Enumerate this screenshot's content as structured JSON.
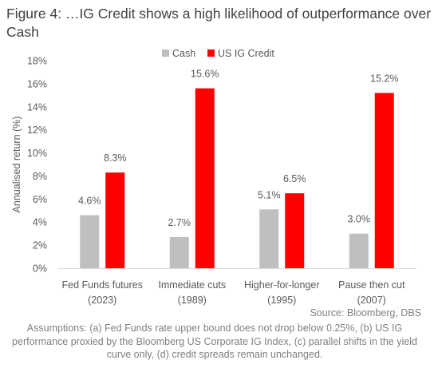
{
  "title": "Figure 4: …IG Credit shows a high likelihood of outperformance over Cash",
  "source": "Source: Bloomberg, DBS",
  "assumptions": "Assumptions: (a) Fed Funds rate upper bound does not drop below 0.25%, (b) US IG performance proxied by the Bloomberg US Corporate IG Index, (c) parallel shifts in the yield curve only, (d) credit spreads remain unchanged.",
  "chart_data": {
    "type": "bar",
    "title": "Figure 4: …IG Credit shows a high likelihood of outperformance over Cash",
    "ylabel": "Annualised return (%)",
    "xlabel": "",
    "ylim": [
      0,
      18
    ],
    "y_ticks": [
      0,
      2,
      4,
      6,
      8,
      10,
      12,
      14,
      16,
      18
    ],
    "y_tick_labels": [
      "0%",
      "2%",
      "4%",
      "6%",
      "8%",
      "10%",
      "12%",
      "14%",
      "16%",
      "18%"
    ],
    "categories": [
      [
        "Fed Funds futures",
        "(2023)"
      ],
      [
        "Immediate cuts",
        "(1989)"
      ],
      [
        "Higher-for-longer",
        "(1995)"
      ],
      [
        "Pause then cut",
        "(2007)"
      ]
    ],
    "series": [
      {
        "name": "Cash",
        "color": "#bfbfbf",
        "values": [
          4.6,
          2.7,
          5.1,
          3.0
        ],
        "labels": [
          "4.6%",
          "2.7%",
          "5.1%",
          "3.0%"
        ]
      },
      {
        "name": "US IG Credit",
        "color": "#ff0000",
        "values": [
          8.3,
          15.6,
          6.5,
          15.2
        ],
        "labels": [
          "8.3%",
          "15.6%",
          "6.5%",
          "15.2%"
        ]
      }
    ],
    "legend_position": "top",
    "grid": false
  }
}
